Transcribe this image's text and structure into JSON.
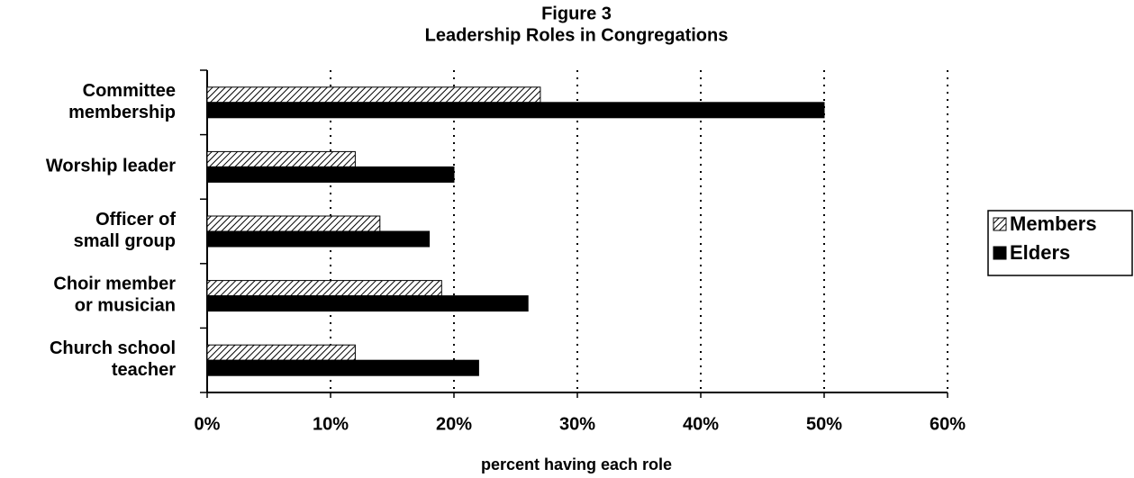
{
  "chart_data": {
    "type": "barh",
    "title": "Figure 3",
    "subtitle": "Leadership Roles in Congregations",
    "x_label": "percent having each role",
    "categories": [
      "Committee\nmembership",
      "Worship leader",
      "Officer of\nsmall group",
      "Choir member\nor musician",
      "Church school\nteacher"
    ],
    "series": [
      {
        "name": "Members",
        "color": "#000000",
        "values": [
          27,
          12,
          14,
          19,
          12
        ]
      },
      {
        "name": "Elders",
        "color": "#000000",
        "values": [
          50,
          20,
          18,
          26,
          22
        ]
      }
    ],
    "xlim": [
      0,
      60
    ],
    "xticks": [
      {
        "value": 0,
        "label": "0%"
      },
      {
        "value": 10,
        "label": "10%"
      },
      {
        "value": 20,
        "label": "20%"
      },
      {
        "value": 30,
        "label": "30%"
      },
      {
        "value": 40,
        "label": "40%"
      },
      {
        "value": 50,
        "label": "50%"
      },
      {
        "value": 60,
        "label": "60%"
      }
    ],
    "grid": true,
    "legend": "right"
  }
}
